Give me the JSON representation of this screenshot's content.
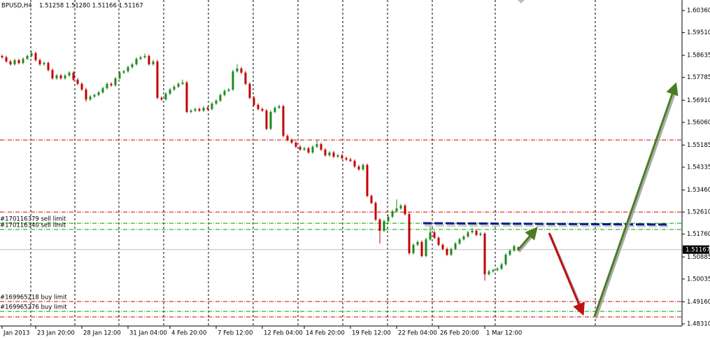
{
  "chart_data": {
    "type": "candlestick",
    "title": "BPUSD,H4",
    "subtitle": "1.51258 1.51280 1.51166 1.51167",
    "categories": [
      "Jan 2013",
      null,
      null,
      null,
      null,
      null,
      null,
      null,
      "23 Jan 20:00",
      null,
      null,
      null,
      null,
      null,
      null,
      null,
      null,
      null,
      null,
      "28 Jan 12:00",
      null,
      null,
      null,
      null,
      null,
      null,
      null,
      null,
      null,
      null,
      "31 Jan 04:00",
      null,
      null,
      null,
      null,
      null,
      null,
      null,
      null,
      null,
      "4 Feb 20:00",
      null,
      null,
      null,
      null,
      null,
      null,
      null,
      null,
      null,
      null,
      "7 Feb 12:00",
      null,
      null,
      null,
      null,
      null,
      null,
      null,
      null,
      null,
      null,
      "12 Feb 04:00",
      null,
      null,
      null,
      null,
      null,
      null,
      null,
      null,
      null,
      "14 Feb 20:00",
      null,
      null,
      null,
      null,
      null,
      null,
      null,
      null,
      null,
      null,
      "19 Feb 12:00",
      null,
      null,
      null,
      null,
      null,
      null,
      null,
      null,
      null,
      null,
      "22 Feb 04:00",
      null,
      null,
      null,
      null,
      null,
      null,
      null,
      null,
      null,
      "26 Feb 20:00",
      null,
      null,
      null,
      null,
      null,
      null,
      null,
      null,
      null,
      null,
      "1 Mar 12:00",
      null,
      null,
      null,
      null,
      null,
      null,
      null,
      null
    ],
    "open": [
      1.5861,
      1.5856,
      1.584,
      1.5829,
      1.5845,
      1.5834,
      1.585,
      1.5861,
      1.5872,
      1.5845,
      1.5829,
      1.5834,
      1.5807,
      1.5775,
      1.5786,
      1.5775,
      1.5786,
      1.5797,
      1.577,
      1.5754,
      1.5732,
      1.5694,
      1.5705,
      1.5711,
      1.5721,
      1.5737,
      1.5754,
      1.5748,
      1.5775,
      1.5797,
      1.5802,
      1.5818,
      1.5829,
      1.585,
      1.5856,
      1.5861,
      1.5829,
      1.584,
      1.57,
      1.5694,
      1.5716,
      1.5732,
      1.5743,
      1.5754,
      1.5759,
      1.5646,
      1.5651,
      1.5657,
      1.5651,
      1.5662,
      1.5657,
      1.5678,
      1.5689,
      1.5711,
      1.5727,
      1.5732,
      1.5802,
      1.5813,
      1.5797,
      1.5754,
      1.57,
      1.5673,
      1.5657,
      1.5651,
      1.5581,
      1.5646,
      1.5662,
      1.5668,
      1.5554,
      1.5538,
      1.5528,
      1.5512,
      1.5501,
      1.5506,
      1.549,
      1.5512,
      1.5522,
      1.5501,
      1.5479,
      1.549,
      1.5474,
      1.5479,
      1.5468,
      1.5463,
      1.5458,
      1.5436,
      1.5425,
      1.5442,
      1.5323,
      1.5296,
      1.5232,
      1.5189,
      1.5226,
      1.5243,
      1.5264,
      1.5275,
      1.5286,
      1.5253,
      1.5103,
      1.5135,
      1.5146,
      1.5092,
      1.5156,
      1.5183,
      1.5162,
      1.5135,
      1.5119,
      1.5097,
      1.5119,
      1.514,
      1.5156,
      1.5167,
      1.5183,
      1.5189,
      1.5173,
      1.5178,
      1.5022,
      1.5033,
      1.5038,
      1.5043,
      1.506,
      1.5097,
      1.5113,
      1.51258
    ],
    "high": [
      1.5867,
      1.5862,
      1.5846,
      1.5851,
      1.5851,
      1.5856,
      1.5867,
      1.588,
      1.5878,
      1.5851,
      1.584,
      1.584,
      1.5813,
      1.5792,
      1.5792,
      1.5792,
      1.5803,
      1.5803,
      1.5776,
      1.576,
      1.5738,
      1.5711,
      1.5717,
      1.5727,
      1.5743,
      1.576,
      1.576,
      1.5781,
      1.5803,
      1.5808,
      1.5824,
      1.5835,
      1.5856,
      1.5862,
      1.587,
      1.5867,
      1.5846,
      1.5846,
      1.5706,
      1.5722,
      1.5738,
      1.5749,
      1.576,
      1.577,
      1.5765,
      1.5657,
      1.5663,
      1.5663,
      1.5668,
      1.5668,
      1.5684,
      1.5695,
      1.5717,
      1.5733,
      1.5738,
      1.5808,
      1.583,
      1.5819,
      1.5803,
      1.576,
      1.5706,
      1.5679,
      1.5663,
      1.5657,
      1.5652,
      1.5668,
      1.5674,
      1.5674,
      1.556,
      1.5544,
      1.5534,
      1.5518,
      1.5512,
      1.5512,
      1.5518,
      1.554,
      1.5528,
      1.5507,
      1.5496,
      1.5496,
      1.5485,
      1.5485,
      1.5474,
      1.5469,
      1.5464,
      1.5442,
      1.5448,
      1.5448,
      1.5329,
      1.5302,
      1.5238,
      1.5232,
      1.5249,
      1.527,
      1.531,
      1.5292,
      1.5292,
      1.5259,
      1.5141,
      1.5152,
      1.5152,
      1.5162,
      1.5205,
      1.5189,
      1.5168,
      1.5141,
      1.5125,
      1.5125,
      1.5146,
      1.5162,
      1.5173,
      1.5189,
      1.52,
      1.5195,
      1.5184,
      1.5184,
      1.5039,
      1.5044,
      1.5049,
      1.5066,
      1.5103,
      1.5119,
      1.5136,
      1.5128
    ],
    "low": [
      1.5851,
      1.5835,
      1.5824,
      1.5824,
      1.5829,
      1.5829,
      1.5845,
      1.5856,
      1.584,
      1.5824,
      1.5824,
      1.5802,
      1.577,
      1.577,
      1.577,
      1.577,
      1.5781,
      1.5765,
      1.5749,
      1.5727,
      1.5685,
      1.5689,
      1.57,
      1.5706,
      1.5716,
      1.5732,
      1.5743,
      1.5743,
      1.577,
      1.5792,
      1.5797,
      1.5813,
      1.5824,
      1.5845,
      1.5851,
      1.5824,
      1.5824,
      1.5695,
      1.5689,
      1.5689,
      1.5711,
      1.5727,
      1.5738,
      1.5749,
      1.5641,
      1.5641,
      1.5646,
      1.5646,
      1.5646,
      1.5652,
      1.5652,
      1.5673,
      1.5684,
      1.5706,
      1.5722,
      1.5727,
      1.5797,
      1.5792,
      1.5749,
      1.5695,
      1.5668,
      1.5652,
      1.5646,
      1.5576,
      1.5576,
      1.5641,
      1.5657,
      1.5549,
      1.5533,
      1.5523,
      1.5507,
      1.5496,
      1.5496,
      1.5485,
      1.5485,
      1.5507,
      1.5496,
      1.5474,
      1.5474,
      1.5469,
      1.5469,
      1.5463,
      1.5458,
      1.5453,
      1.5431,
      1.542,
      1.542,
      1.5318,
      1.5291,
      1.5227,
      1.514,
      1.5184,
      1.5221,
      1.5238,
      1.5259,
      1.527,
      1.5248,
      1.5098,
      1.5098,
      1.513,
      1.5087,
      1.5087,
      1.5151,
      1.5157,
      1.513,
      1.5114,
      1.5092,
      1.5092,
      1.5114,
      1.5135,
      1.5151,
      1.5162,
      1.5178,
      1.5168,
      1.5168,
      1.4997,
      1.5017,
      1.5028,
      1.5033,
      1.5038,
      1.5055,
      1.5092,
      1.5108,
      1.51166
    ],
    "close": [
      1.5856,
      1.584,
      1.5829,
      1.5845,
      1.5834,
      1.585,
      1.5861,
      1.5872,
      1.5845,
      1.5829,
      1.5834,
      1.5807,
      1.5775,
      1.5786,
      1.5775,
      1.5786,
      1.5797,
      1.577,
      1.5754,
      1.5732,
      1.5694,
      1.5705,
      1.5711,
      1.5721,
      1.5737,
      1.5754,
      1.5748,
      1.5775,
      1.5797,
      1.5802,
      1.5818,
      1.5829,
      1.585,
      1.5856,
      1.5861,
      1.5829,
      1.584,
      1.57,
      1.5694,
      1.5716,
      1.5732,
      1.5743,
      1.5754,
      1.5759,
      1.5646,
      1.5651,
      1.5657,
      1.5651,
      1.5662,
      1.5657,
      1.5678,
      1.5689,
      1.5711,
      1.5727,
      1.5732,
      1.5802,
      1.5813,
      1.5797,
      1.5754,
      1.57,
      1.5673,
      1.5657,
      1.5651,
      1.5581,
      1.5646,
      1.5662,
      1.5668,
      1.5554,
      1.5538,
      1.5528,
      1.5512,
      1.5501,
      1.5506,
      1.549,
      1.5512,
      1.5522,
      1.5501,
      1.5479,
      1.549,
      1.5474,
      1.5479,
      1.5468,
      1.5463,
      1.5458,
      1.5436,
      1.5425,
      1.5442,
      1.5323,
      1.5296,
      1.5232,
      1.5189,
      1.5226,
      1.5243,
      1.5264,
      1.5275,
      1.5286,
      1.5253,
      1.5103,
      1.5135,
      1.5146,
      1.5092,
      1.5156,
      1.5183,
      1.5162,
      1.5135,
      1.5119,
      1.5097,
      1.5119,
      1.514,
      1.5156,
      1.5167,
      1.5183,
      1.5189,
      1.5173,
      1.5178,
      1.5022,
      1.5033,
      1.5038,
      1.5043,
      1.506,
      1.5097,
      1.5113,
      1.513,
      1.51167
    ],
    "up_color": "#1e8a1e",
    "down_color": "#c40000",
    "ylim": [
      1.48229,
      1.60763
    ],
    "yticks": [
      {
        "value": 1.6036,
        "label": "1.60360"
      },
      {
        "value": 1.5951,
        "label": "1.59510"
      },
      {
        "value": 1.58635,
        "label": "1.58635"
      },
      {
        "value": 1.57785,
        "label": "1.57785"
      },
      {
        "value": 1.5691,
        "label": "1.56910"
      },
      {
        "value": 1.5606,
        "label": "1.56060"
      },
      {
        "value": 1.55185,
        "label": "1.55185"
      },
      {
        "value": 1.54335,
        "label": "1.54335"
      },
      {
        "value": 1.5346,
        "label": "1.53460"
      },
      {
        "value": 1.5261,
        "label": "1.52610"
      },
      {
        "value": 1.5176,
        "label": "1.51760"
      },
      {
        "value": 1.50885,
        "label": "1.50885"
      },
      {
        "value": 1.50035,
        "label": "1.50035"
      },
      {
        "value": 1.4916,
        "label": "1.49160"
      },
      {
        "value": 1.4831,
        "label": "1.48310"
      }
    ],
    "current_price": 1.51167,
    "levels": [
      {
        "value": 1.5538,
        "color": "#d40000"
      },
      {
        "value": 1.5261,
        "color": "#d40000"
      },
      {
        "value": 1.5218,
        "color": "#00a000",
        "label": "#170116379 sell limit"
      },
      {
        "value": 1.5194,
        "color": "#00a000",
        "label": "#170116340 sell limit"
      },
      {
        "value": 1.4917,
        "color": "#d40000",
        "label": "#169965218 buy limit"
      },
      {
        "value": 1.4879,
        "color": "#00a000",
        "label": "#169965276 buy limit"
      },
      {
        "value": 1.4858,
        "color": "#d40000"
      }
    ]
  }
}
